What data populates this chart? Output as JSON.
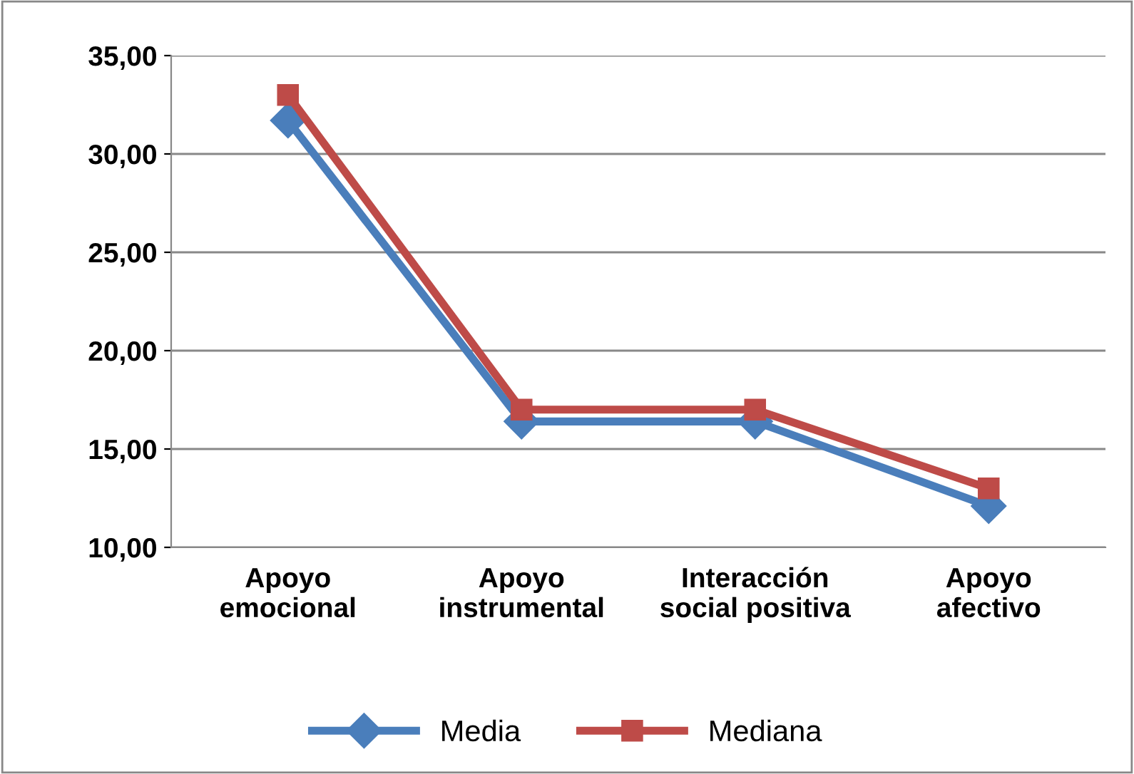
{
  "chart_data": {
    "type": "line",
    "categories": [
      "Apoyo\nemocional",
      "Apoyo\ninstrumental",
      "Interacción\nsocial positiva",
      "Apoyo\nafectivo"
    ],
    "series": [
      {
        "name": "Media",
        "color": "#4a7ebb",
        "values": [
          31.7,
          16.4,
          16.4,
          12.1
        ],
        "marker": "diamond"
      },
      {
        "name": "Mediana",
        "color": "#be4b48",
        "values": [
          33.0,
          17.0,
          17.0,
          13.0
        ],
        "marker": "square"
      }
    ],
    "ylim": [
      10,
      35
    ],
    "yticks": [
      {
        "value": 10,
        "label": "10,00"
      },
      {
        "value": 15,
        "label": "15,00"
      },
      {
        "value": 20,
        "label": "20,00"
      },
      {
        "value": 25,
        "label": "25,00"
      },
      {
        "value": 30,
        "label": "30,00"
      },
      {
        "value": 35,
        "label": "35,00"
      }
    ],
    "grid": "y",
    "legend": "bottom",
    "line_style": "solid"
  }
}
